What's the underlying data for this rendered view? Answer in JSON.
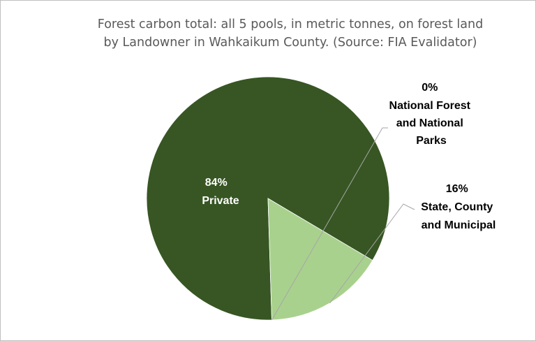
{
  "chart_data": {
    "type": "pie",
    "title_lines": [
      "Forest carbon total: all 5 pools, in metric tonnes, on forest land",
      "by Landowner in Wahkaikum County.  (Source: FIA Evalidator)"
    ],
    "slices": [
      {
        "name_lines": [
          "Private"
        ],
        "pct_label": "84%",
        "value": 84,
        "color": "#375623",
        "label_color": "#ffffff"
      },
      {
        "name_lines": [
          "State, County",
          "and Municipal"
        ],
        "pct_label": "16%",
        "value": 16,
        "color": "#a9d18e",
        "label_color": "#000000"
      },
      {
        "name_lines": [
          "National Forest",
          "and National",
          "Parks"
        ],
        "pct_label": "0%",
        "value": 0,
        "color": "#70ad47",
        "label_color": "#000000"
      }
    ],
    "legend": "none"
  }
}
